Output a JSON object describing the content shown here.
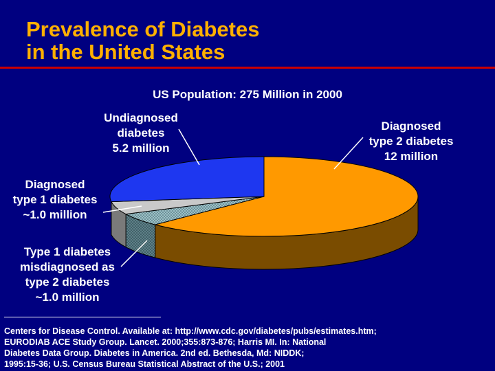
{
  "slide": {
    "title_lines": [
      "Prevalence of Diabetes",
      "in the United States"
    ],
    "subtitle": "US Population: 275 Million in 2000",
    "references": [
      "Centers for Disease Control. Available at: http://www.cdc.gov/diabetes/pubs/estimates.htm;",
      "EURODIAB ACE Study Group. Lancet. 2000;355:873-876; Harris MI. In: National",
      "Diabetes Data Group. Diabetes in America. 2nd ed. Bethesda, Md: NIDDK;",
      "1995:15-36; U.S. Census Bureau Statistical Abstract of the U.S.; 2001"
    ]
  },
  "colors": {
    "background": "#000080",
    "title": "#FFB000",
    "title_rule": "#CC0000",
    "text": "#FFFFFF"
  },
  "chart_data": {
    "type": "pie",
    "title": "US Population: 275 Million in 2000",
    "style": "3d",
    "units": "million",
    "slices": [
      {
        "id": "diagnosed-type2",
        "label_lines": [
          "Diagnosed",
          "type 2 diabetes",
          "12 million"
        ],
        "value": 12.0,
        "color": "#FF9900",
        "side_color": "#7A4C00",
        "pattern": "solid"
      },
      {
        "id": "misdiagnosed-type1",
        "label_lines": [
          "Type 1 diabetes",
          "misdiagnosed as",
          "type 2 diabetes",
          "~1.0 million"
        ],
        "value": 1.0,
        "color": "#8FB2B8",
        "side_color": "#50747C",
        "pattern": "dotted"
      },
      {
        "id": "diagnosed-type1",
        "label_lines": [
          "Diagnosed",
          "type 1 diabetes",
          "~1.0 million"
        ],
        "value": 1.0,
        "color": "#C9C9C9",
        "side_color": "#7A7A7A",
        "pattern": "solid"
      },
      {
        "id": "undiagnosed",
        "label_lines": [
          "Undiagnosed",
          "diabetes",
          "5.2 million"
        ],
        "value": 5.2,
        "color": "#1E37F0",
        "side_color": "#0E1A7A",
        "pattern": "solid"
      }
    ]
  }
}
